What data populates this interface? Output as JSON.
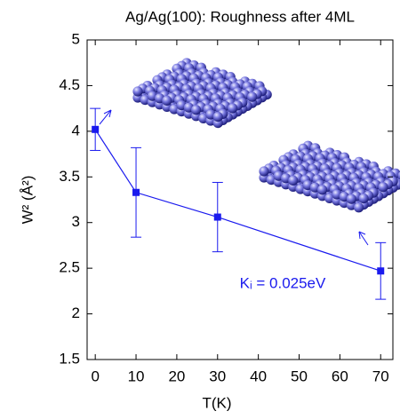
{
  "chart_data": {
    "type": "line",
    "title": "Ag/Ag(100): Roughness after 4ML",
    "x_label": "T(K)",
    "y_label": "W² (Å²)",
    "annotation": "Kᵢ = 0.025eV",
    "x": [
      0,
      10,
      30,
      70
    ],
    "series": [
      {
        "color": "#1a1aee",
        "values": [
          4.02,
          3.33,
          3.06,
          2.47
        ],
        "errors": [
          0.23,
          0.49,
          0.38,
          0.31
        ]
      }
    ],
    "xlim": [
      -2,
      73
    ],
    "ylim": [
      1.5,
      5
    ],
    "xticks": [
      0,
      10,
      20,
      30,
      40,
      50,
      60,
      70
    ],
    "yticks": [
      1.5,
      2,
      2.5,
      3,
      3.5,
      4,
      4.5,
      5
    ]
  }
}
